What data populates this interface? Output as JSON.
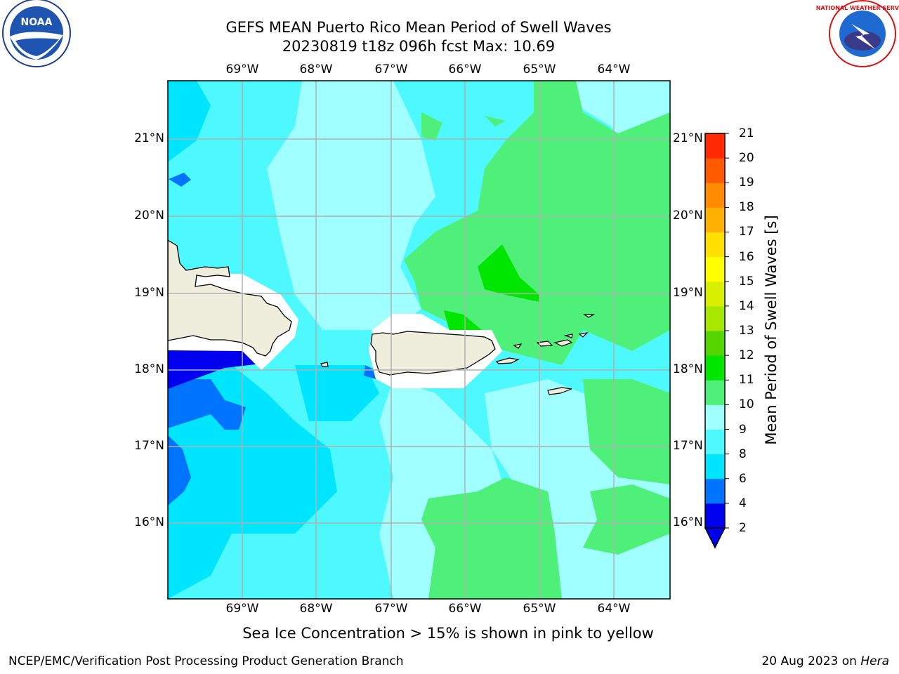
{
  "title": {
    "line1": "GEFS MEAN Puerto Rico Mean Period of Swell Waves",
    "line2": "20230819 t18z 096h fcst   Max: 10.69"
  },
  "map": {
    "lon_labels": [
      "69°W",
      "68°W",
      "67°W",
      "66°W",
      "65°W",
      "64°W"
    ],
    "lat_labels": [
      "21°N",
      "20°N",
      "19°N",
      "18°N",
      "17°N",
      "16°N"
    ],
    "lon_values": [
      -69,
      -68,
      -67,
      -66,
      -65,
      -64
    ],
    "lat_values": [
      21,
      20,
      19,
      18,
      17,
      16
    ],
    "lon_range": [
      -70,
      -63.25
    ],
    "lat_range": [
      15.0,
      21.75
    ],
    "grid": true,
    "land_color": "#efeddc",
    "ice_free_halo_color": "#ffffff"
  },
  "colorbar": {
    "label": "Mean Period of Swell Waves [s]",
    "ticks": [
      "21",
      "20",
      "19",
      "18",
      "17",
      "16",
      "15",
      "14",
      "13",
      "12",
      "11",
      "10",
      "9",
      "8",
      "6",
      "4",
      "2"
    ],
    "levels": [
      2,
      4,
      6,
      8,
      9,
      10,
      11,
      12,
      13,
      14,
      15,
      16,
      17,
      18,
      19,
      20,
      21
    ],
    "colors": [
      "#0000ee",
      "#0073ff",
      "#00e5ff",
      "#4df8ff",
      "#a0ffff",
      "#4ef07a",
      "#00e600",
      "#55d600",
      "#a8e800",
      "#d8f000",
      "#ffff00",
      "#ffe000",
      "#ffb000",
      "#ff8c00",
      "#ff5a00",
      "#ff2800"
    ],
    "under_color": "#0000ee",
    "extend": "min"
  },
  "note": "Sea Ice Concentration > 15% is shown in pink to yellow",
  "footer": {
    "left": "NCEP/EMC/Verification Post Processing Product Generation Branch",
    "date": "20 Aug 2023 on ",
    "machine": "Hera"
  },
  "logos": {
    "left": "NOAA",
    "right": "NATIONAL WEATHER SERVICE"
  }
}
